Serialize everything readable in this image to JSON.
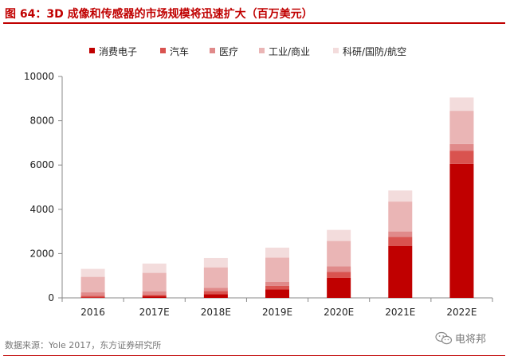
{
  "title": "图 64：3D 成像和传感器的市场规模将迅速扩大（百万美元）",
  "source": "数据来源：Yole 2017，东方证券研究所",
  "watermark": "电将邦",
  "colors": {
    "accent": "#c00000",
    "series": [
      "#c00000",
      "#d9534f",
      "#e08a8a",
      "#eab5b5",
      "#f3dcdc"
    ]
  },
  "chart_data": {
    "type": "bar",
    "stacked": true,
    "categories": [
      "2016",
      "2017E",
      "2018E",
      "2019E",
      "2020E",
      "2021E",
      "2022E"
    ],
    "series": [
      {
        "name": "消费电子",
        "values": [
          20,
          70,
          170,
          380,
          900,
          2350,
          6050
        ]
      },
      {
        "name": "汽车",
        "values": [
          80,
          80,
          140,
          170,
          270,
          400,
          600
        ]
      },
      {
        "name": "医疗",
        "values": [
          150,
          150,
          150,
          170,
          250,
          250,
          300
        ]
      },
      {
        "name": "工业/商业",
        "values": [
          700,
          830,
          920,
          1100,
          1150,
          1350,
          1500
        ]
      },
      {
        "name": "科研/国防/航空",
        "values": [
          360,
          420,
          420,
          450,
          500,
          500,
          600
        ]
      }
    ],
    "yticks": [
      0,
      2000,
      4000,
      6000,
      8000,
      10000
    ],
    "ytick_labels": [
      "0",
      "2000",
      "4000",
      "6000",
      "8000",
      "10000"
    ],
    "ylim": [
      0,
      10000
    ],
    "grid": false,
    "legend": "top"
  }
}
